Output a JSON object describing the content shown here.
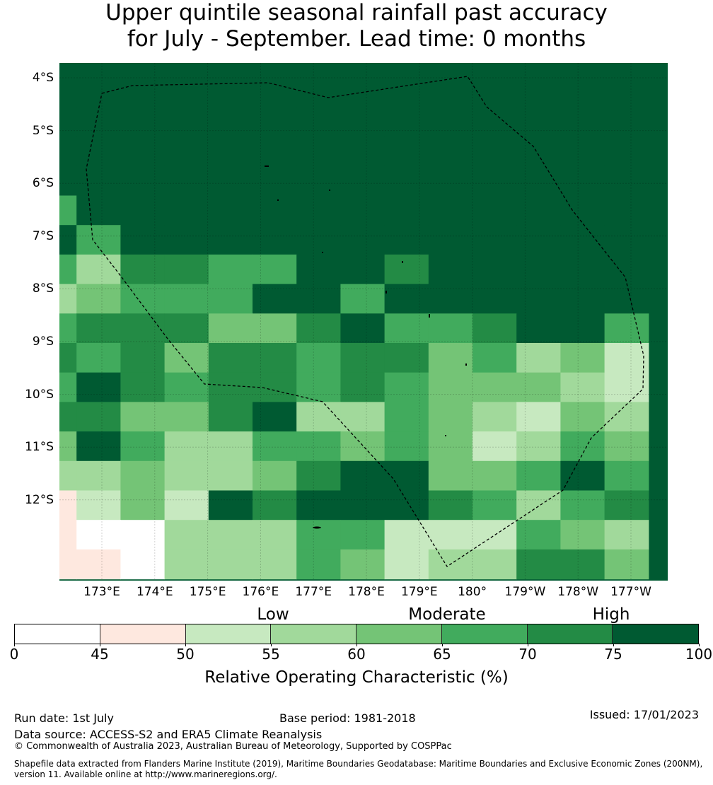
{
  "header": {
    "title_line1": "Upper quintile seasonal rainfall past accuracy",
    "title_line2": "for July - September. Lead time: 0 months"
  },
  "map": {
    "y_ticks": [
      "4°S",
      "5°S",
      "6°S",
      "7°S",
      "8°S",
      "9°S",
      "10°S",
      "11°S",
      "12°S"
    ],
    "x_ticks": [
      "173°E",
      "174°E",
      "175°E",
      "176°E",
      "177°E",
      "178°E",
      "179°E",
      "180°",
      "179°W",
      "178°W",
      "177°W"
    ],
    "grid": [
      [
        75,
        75,
        75,
        75,
        75,
        75,
        75,
        75,
        75,
        75,
        75,
        75,
        75,
        75
      ],
      [
        75,
        75,
        75,
        75,
        75,
        75,
        75,
        75,
        75,
        75,
        75,
        75,
        75,
        75
      ],
      [
        75,
        75,
        75,
        75,
        75,
        75,
        75,
        75,
        75,
        75,
        75,
        75,
        75,
        75
      ],
      [
        75,
        75,
        75,
        75,
        75,
        75,
        75,
        75,
        75,
        75,
        75,
        75,
        75,
        75
      ],
      [
        75,
        75,
        75,
        75,
        75,
        75,
        75,
        75,
        75,
        75,
        75,
        75,
        75,
        75
      ],
      [
        65,
        75,
        75,
        75,
        75,
        75,
        75,
        75,
        75,
        75,
        75,
        75,
        75,
        75
      ],
      [
        75,
        65,
        75,
        75,
        75,
        75,
        75,
        75,
        75,
        75,
        75,
        75,
        75,
        75
      ],
      [
        65,
        55,
        70,
        70,
        65,
        65,
        75,
        75,
        70,
        75,
        75,
        75,
        75,
        75
      ],
      [
        55,
        60,
        65,
        65,
        65,
        75,
        75,
        65,
        75,
        75,
        75,
        75,
        75,
        75
      ],
      [
        65,
        70,
        70,
        70,
        60,
        60,
        70,
        75,
        65,
        65,
        70,
        75,
        75,
        65
      ],
      [
        70,
        65,
        70,
        60,
        70,
        70,
        65,
        70,
        70,
        60,
        65,
        55,
        60,
        50
      ],
      [
        65,
        75,
        70,
        65,
        70,
        70,
        65,
        70,
        65,
        60,
        60,
        60,
        55,
        50
      ],
      [
        70,
        70,
        60,
        60,
        70,
        75,
        55,
        55,
        65,
        60,
        55,
        50,
        60,
        55
      ],
      [
        60,
        75,
        65,
        55,
        55,
        65,
        65,
        60,
        65,
        60,
        50,
        55,
        65,
        60
      ],
      [
        55,
        55,
        60,
        55,
        55,
        60,
        70,
        75,
        75,
        60,
        60,
        65,
        75,
        65
      ],
      [
        45,
        50,
        60,
        50,
        75,
        70,
        75,
        75,
        75,
        70,
        65,
        55,
        65,
        70
      ],
      [
        45,
        0,
        0,
        55,
        55,
        55,
        65,
        65,
        50,
        50,
        50,
        65,
        60,
        55
      ],
      [
        45,
        45,
        0,
        55,
        55,
        55,
        65,
        60,
        50,
        55,
        55,
        70,
        70,
        60
      ]
    ]
  },
  "legend": {
    "categories": [
      "Low",
      "Moderate",
      "High"
    ],
    "ticks": [
      "0",
      "45",
      "50",
      "55",
      "60",
      "65",
      "70",
      "75",
      "100"
    ],
    "colors": [
      "#ffffff",
      "#fee8df",
      "#c7e9c0",
      "#a1d99b",
      "#74c476",
      "#41ab5d",
      "#238b45",
      "#005a32"
    ],
    "label": "Relative Operating Characteristic (%)"
  },
  "footer": {
    "run_date": "Run date: 1st July",
    "base_period": "Base period: 1981-2018",
    "issued": "Issued: 17/01/2023",
    "source": "Data source: ACCESS-S2 and ERA5 Climate Reanalysis",
    "copyright": "© Commonwealth of Australia 2023, Australian Bureau of Meteorology, Supported by COSPPac",
    "shapefile_line1": "Shapefile data extracted from Flanders Marine Institute (2019), Maritime Boundaries Geodatabase: Maritime Boundaries and Exclusive Economic Zones (200NM),",
    "shapefile_line2": "version 11. Available online at http://www.marineregions.org/."
  }
}
